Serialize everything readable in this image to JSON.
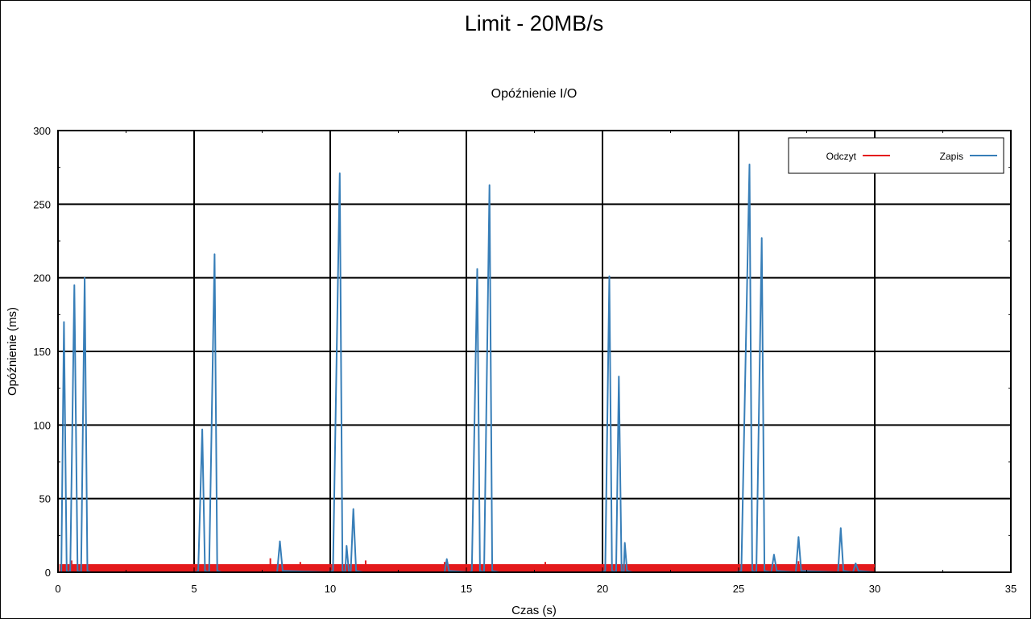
{
  "chart_data": {
    "type": "line",
    "title": "Limit - 20MB/s",
    "subtitle": "Opóźnienie I/O",
    "xlabel": "Czas (s)",
    "ylabel": "Opóźnienie (ms)",
    "xlim": [
      0,
      35
    ],
    "ylim": [
      0,
      300
    ],
    "xticks": [
      0,
      5,
      10,
      15,
      20,
      25,
      30,
      35
    ],
    "yticks": [
      0,
      50,
      100,
      150,
      200,
      250,
      300
    ],
    "grid": true,
    "legend_position": "top-right",
    "series": [
      {
        "name": "Odczyt",
        "color": "#e41a1c",
        "band": {
          "x_start": 0.05,
          "x_end": 30.0,
          "y_min": 0.5,
          "y_max": 5.5
        },
        "spikes": [
          {
            "x": 0.5,
            "y": 8
          },
          {
            "x": 7.8,
            "y": 9.5
          },
          {
            "x": 8.9,
            "y": 7
          },
          {
            "x": 11.3,
            "y": 8
          },
          {
            "x": 14.2,
            "y": 7
          },
          {
            "x": 17.9,
            "y": 7
          },
          {
            "x": 27.2,
            "y": 7.5
          }
        ]
      },
      {
        "name": "Zapis",
        "color": "#377eb8",
        "points": [
          [
            0.0,
            0
          ],
          [
            0.12,
            0
          ],
          [
            0.22,
            170
          ],
          [
            0.32,
            1
          ],
          [
            0.45,
            0
          ],
          [
            0.6,
            195
          ],
          [
            0.72,
            1
          ],
          [
            0.85,
            0
          ],
          [
            0.98,
            200
          ],
          [
            1.08,
            1
          ],
          [
            1.2,
            0
          ],
          [
            3.5,
            0
          ],
          [
            5.05,
            0
          ],
          [
            5.15,
            1
          ],
          [
            5.3,
            97
          ],
          [
            5.4,
            1
          ],
          [
            5.55,
            0
          ],
          [
            5.75,
            216
          ],
          [
            5.85,
            1
          ],
          [
            6.0,
            0
          ],
          [
            8.05,
            0
          ],
          [
            8.15,
            21
          ],
          [
            8.25,
            1
          ],
          [
            9.9,
            0
          ],
          [
            10.1,
            1
          ],
          [
            10.35,
            271
          ],
          [
            10.45,
            1
          ],
          [
            10.55,
            0
          ],
          [
            10.6,
            18
          ],
          [
            10.68,
            1
          ],
          [
            10.75,
            0
          ],
          [
            10.85,
            43
          ],
          [
            10.95,
            1
          ],
          [
            11.2,
            0
          ],
          [
            14.2,
            0
          ],
          [
            14.28,
            9
          ],
          [
            14.36,
            1
          ],
          [
            15.1,
            0
          ],
          [
            15.2,
            1
          ],
          [
            15.4,
            206
          ],
          [
            15.5,
            1
          ],
          [
            15.65,
            0
          ],
          [
            15.85,
            263
          ],
          [
            15.95,
            1
          ],
          [
            16.2,
            0
          ],
          [
            19.95,
            0
          ],
          [
            20.1,
            1
          ],
          [
            20.25,
            201
          ],
          [
            20.35,
            1
          ],
          [
            20.5,
            0
          ],
          [
            20.6,
            133
          ],
          [
            20.7,
            1
          ],
          [
            20.78,
            0
          ],
          [
            20.82,
            20
          ],
          [
            20.9,
            1
          ],
          [
            21.1,
            0
          ],
          [
            24.9,
            0
          ],
          [
            25.1,
            1
          ],
          [
            25.4,
            277
          ],
          [
            25.5,
            1
          ],
          [
            25.65,
            0
          ],
          [
            25.85,
            227
          ],
          [
            25.95,
            1
          ],
          [
            26.2,
            0
          ],
          [
            26.3,
            12
          ],
          [
            26.4,
            1
          ],
          [
            27.1,
            0
          ],
          [
            27.2,
            24
          ],
          [
            27.3,
            1
          ],
          [
            28.65,
            0
          ],
          [
            28.75,
            30
          ],
          [
            28.85,
            1
          ],
          [
            29.2,
            0
          ],
          [
            29.3,
            6
          ],
          [
            29.4,
            1
          ],
          [
            30.0,
            0
          ]
        ]
      }
    ]
  }
}
